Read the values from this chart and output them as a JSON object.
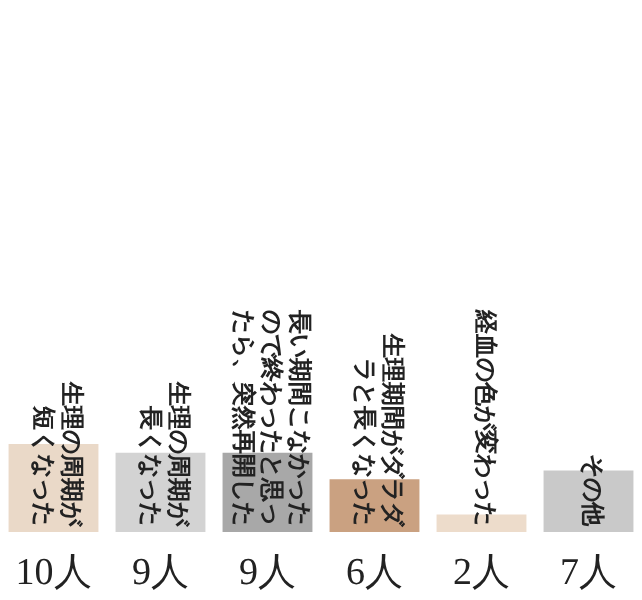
{
  "chart_data": {
    "type": "bar",
    "categories": [
      "生理の周期が短くなった",
      "生理の周期が長くなった",
      "長い期間こなかったので終わったと思ったら、突然再開した",
      "生理期間がダラダラと長くなった",
      "経血の色が変わった",
      "その他"
    ],
    "values": [
      10,
      9,
      9,
      6,
      2,
      7
    ],
    "colors": [
      "#ead9c8",
      "#d3d3d3",
      "#a8a8a8",
      "#caa181",
      "#eddccb",
      "#c9c9c9"
    ],
    "value_labels": [
      "10人",
      "9人",
      "9人",
      "6人",
      "2人",
      "7人"
    ]
  }
}
